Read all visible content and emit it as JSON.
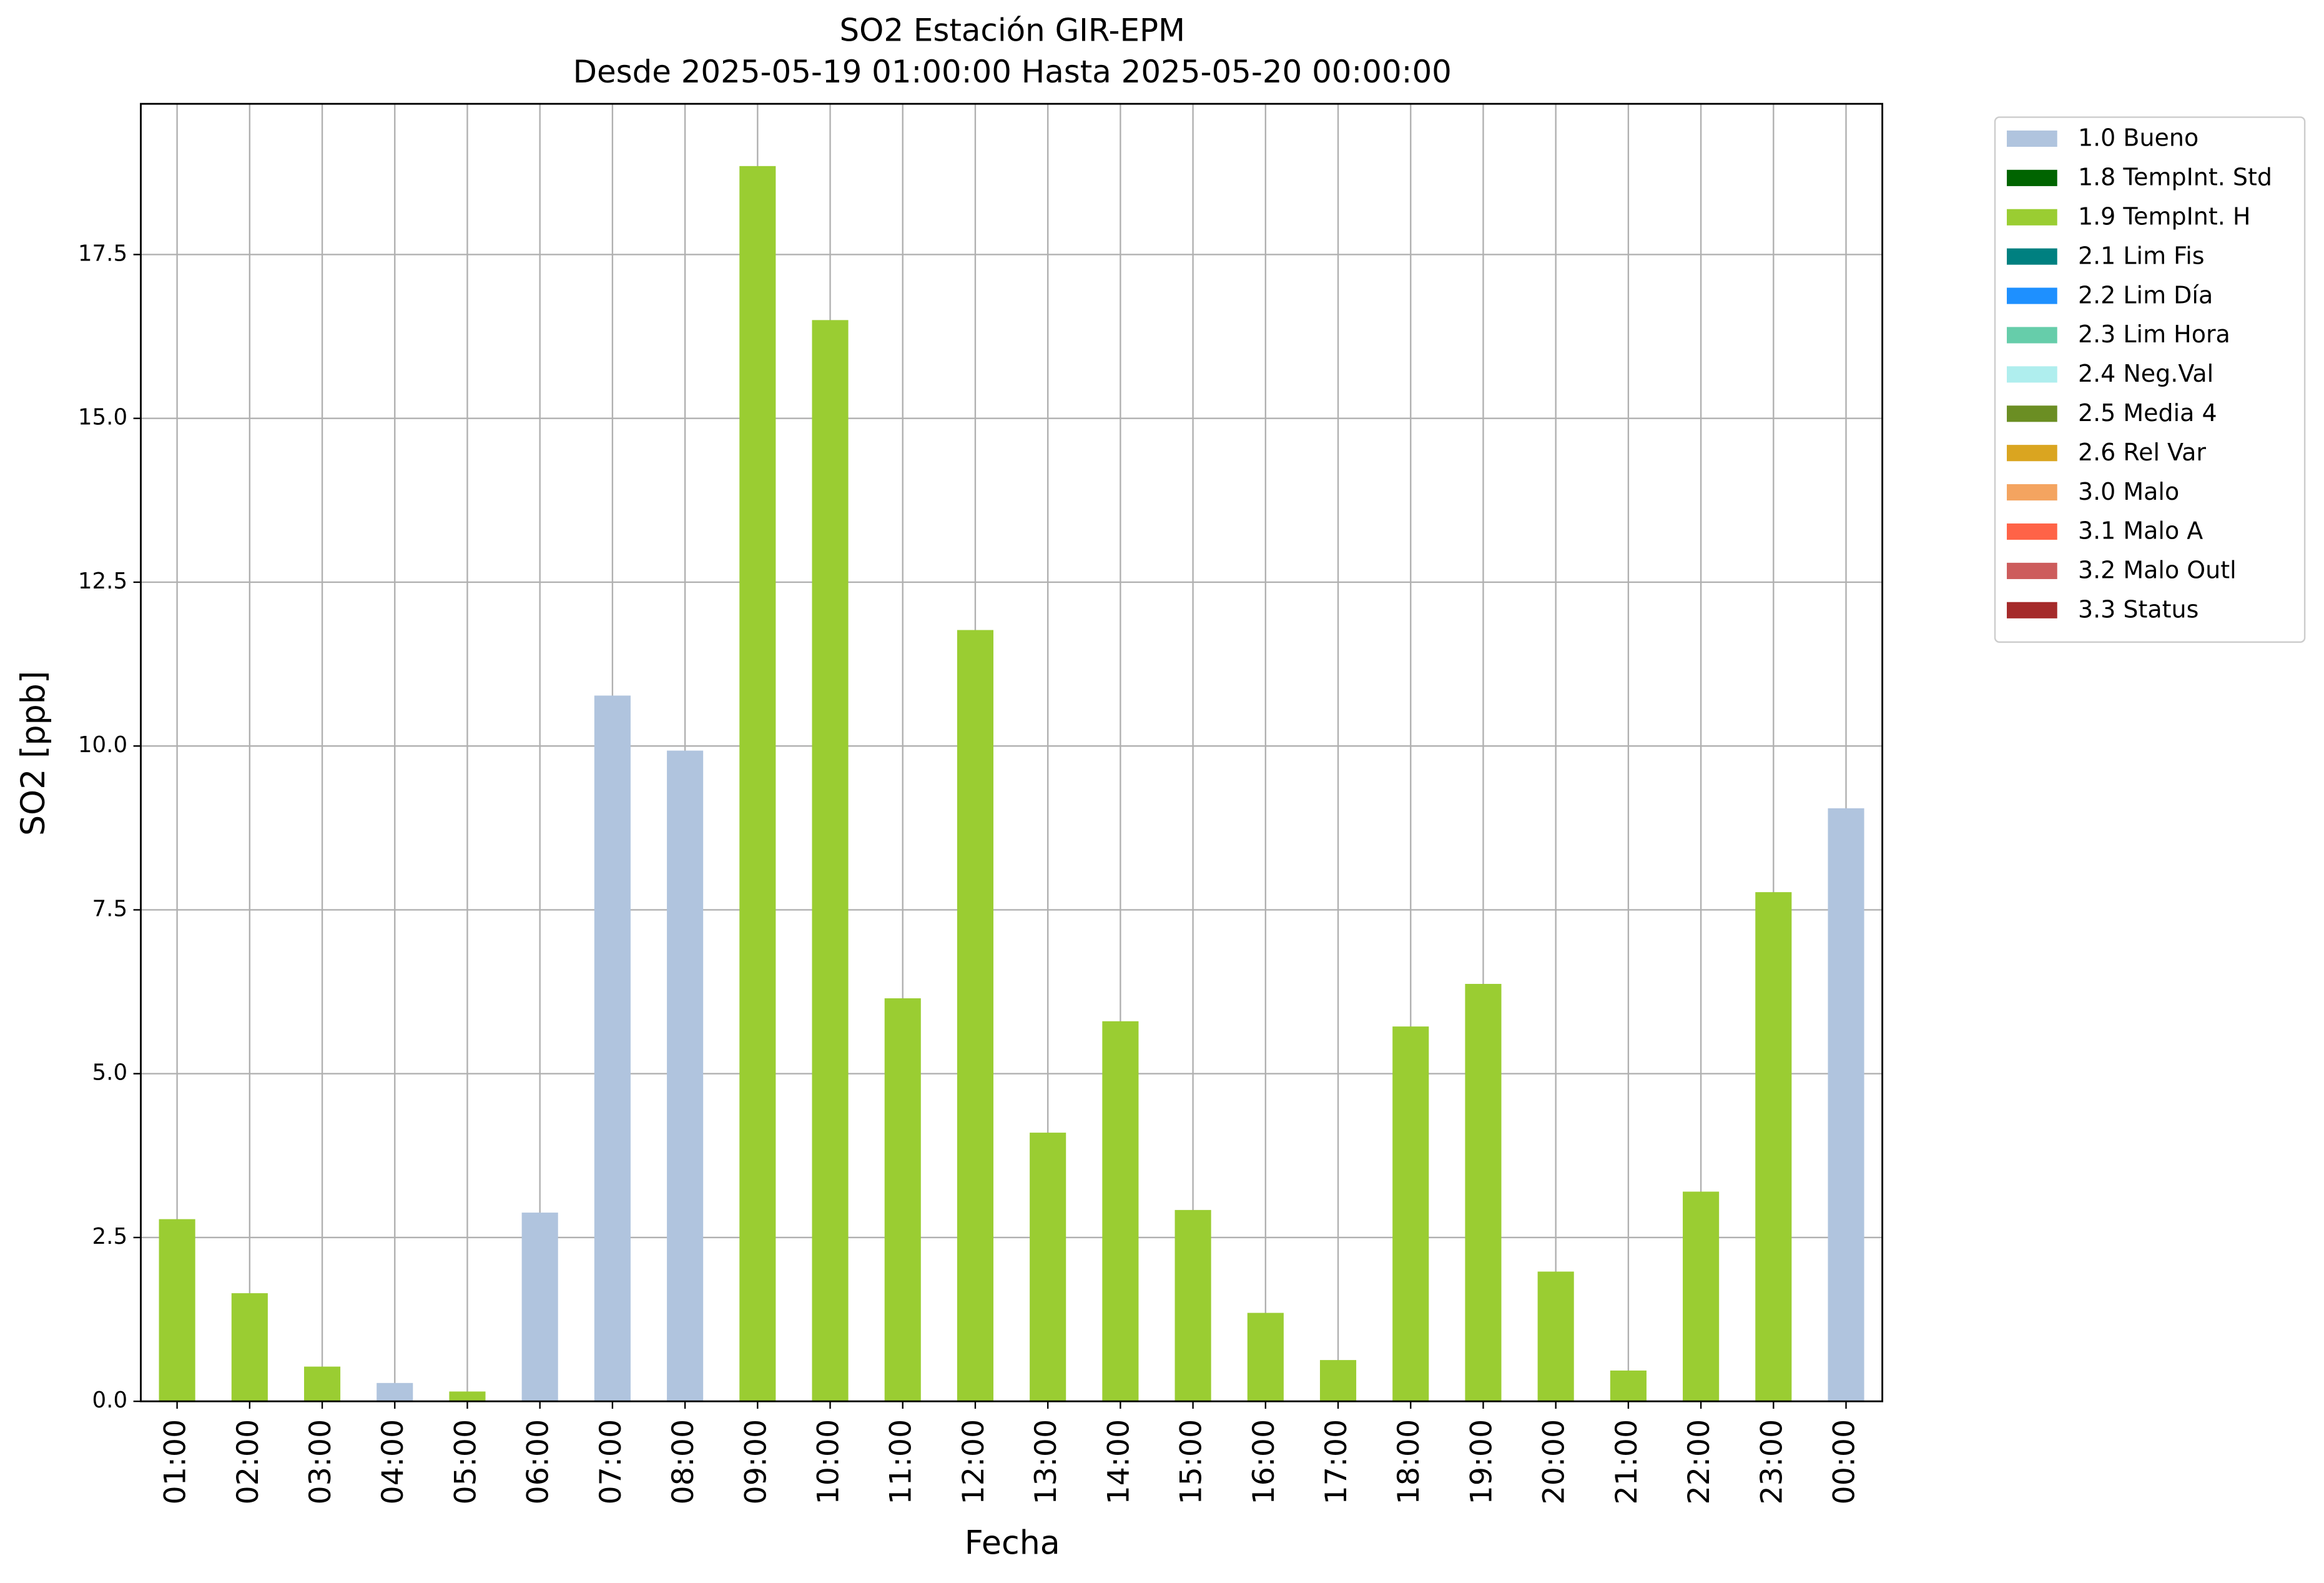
{
  "chart_data": {
    "type": "stacked_bar",
    "title": "SO2 Estación GIR-EPM",
    "subtitle": "Desde 2025-05-19 01:00:00 Hasta 2025-05-20 00:00:00",
    "xlabel": "Fecha",
    "ylabel": "SO2 [ppb]",
    "categories": [
      "01:00",
      "02:00",
      "03:00",
      "04:00",
      "05:00",
      "06:00",
      "07:00",
      "08:00",
      "09:00",
      "10:00",
      "11:00",
      "12:00",
      "13:00",
      "14:00",
      "15:00",
      "16:00",
      "17:00",
      "18:00",
      "19:00",
      "20:00",
      "21:00",
      "22:00",
      "23:00",
      "00:00"
    ],
    "series": [
      {
        "name": "1.0 Bueno",
        "color": "#b0c4de",
        "values": [
          null,
          null,
          null,
          0.28,
          null,
          2.88,
          10.77,
          9.93,
          null,
          null,
          null,
          null,
          null,
          null,
          null,
          null,
          null,
          null,
          null,
          null,
          null,
          null,
          null,
          9.05
        ]
      },
      {
        "name": "1.8 TempInt. Std",
        "color": "#006400",
        "values": [
          null,
          null,
          null,
          null,
          null,
          null,
          null,
          null,
          null,
          null,
          null,
          null,
          null,
          null,
          null,
          null,
          null,
          null,
          null,
          null,
          null,
          null,
          null,
          null
        ]
      },
      {
        "name": "1.9 TempInt. H",
        "color": "#9acd32",
        "values": [
          2.78,
          1.65,
          0.53,
          null,
          0.15,
          null,
          null,
          null,
          18.85,
          16.5,
          6.15,
          11.77,
          4.1,
          5.8,
          2.92,
          1.35,
          0.63,
          5.72,
          6.37,
          1.98,
          0.47,
          3.2,
          7.77,
          null
        ]
      },
      {
        "name": "2.1 Lim Fis",
        "color": "#008080",
        "values": [
          null,
          null,
          null,
          null,
          null,
          null,
          null,
          null,
          null,
          null,
          null,
          null,
          null,
          null,
          null,
          null,
          null,
          null,
          null,
          null,
          null,
          null,
          null,
          null
        ]
      },
      {
        "name": "2.2 Lim Día",
        "color": "#1e90ff",
        "values": [
          null,
          null,
          null,
          null,
          null,
          null,
          null,
          null,
          null,
          null,
          null,
          null,
          null,
          null,
          null,
          null,
          null,
          null,
          null,
          null,
          null,
          null,
          null,
          null
        ]
      },
      {
        "name": "2.3 Lim Hora",
        "color": "#66cdaa",
        "values": [
          null,
          null,
          null,
          null,
          null,
          null,
          null,
          null,
          null,
          null,
          null,
          null,
          null,
          null,
          null,
          null,
          null,
          null,
          null,
          null,
          null,
          null,
          null,
          null
        ]
      },
      {
        "name": "2.4 Neg.Val",
        "color": "#afeeee",
        "values": [
          null,
          null,
          null,
          null,
          null,
          null,
          null,
          null,
          null,
          null,
          null,
          null,
          null,
          null,
          null,
          null,
          null,
          null,
          null,
          null,
          null,
          null,
          null,
          null
        ]
      },
      {
        "name": "2.5 Media 4",
        "color": "#6b8e23",
        "values": [
          null,
          null,
          null,
          null,
          null,
          null,
          null,
          null,
          null,
          null,
          null,
          null,
          null,
          null,
          null,
          null,
          null,
          null,
          null,
          null,
          null,
          null,
          null,
          null
        ]
      },
      {
        "name": "2.6 Rel Var",
        "color": "#daa520",
        "values": [
          null,
          null,
          null,
          null,
          null,
          null,
          null,
          null,
          null,
          null,
          null,
          null,
          null,
          null,
          null,
          null,
          null,
          null,
          null,
          null,
          null,
          null,
          null,
          null
        ]
      },
      {
        "name": "3.0 Malo",
        "color": "#f4a460",
        "values": [
          null,
          null,
          null,
          null,
          null,
          null,
          null,
          null,
          null,
          null,
          null,
          null,
          null,
          null,
          null,
          null,
          null,
          null,
          null,
          null,
          null,
          null,
          null,
          null
        ]
      },
      {
        "name": "3.1 Malo A",
        "color": "#ff6347",
        "values": [
          null,
          null,
          null,
          null,
          null,
          null,
          null,
          null,
          null,
          null,
          null,
          null,
          null,
          null,
          null,
          null,
          null,
          null,
          null,
          null,
          null,
          null,
          null,
          null
        ]
      },
      {
        "name": "3.2 Malo Outl",
        "color": "#cd5c5c",
        "values": [
          null,
          null,
          null,
          null,
          null,
          null,
          null,
          null,
          null,
          null,
          null,
          null,
          null,
          null,
          null,
          null,
          null,
          null,
          null,
          null,
          null,
          null,
          null,
          null
        ]
      },
      {
        "name": "3.3 Status",
        "color": "#a52a2a",
        "values": [
          null,
          null,
          null,
          null,
          null,
          null,
          null,
          null,
          null,
          null,
          null,
          null,
          null,
          null,
          null,
          null,
          null,
          null,
          null,
          null,
          null,
          null,
          null,
          null
        ]
      }
    ],
    "ylim": [
      0,
      19.8
    ],
    "yticks": [
      {
        "value": 0,
        "label": "0.0"
      },
      {
        "value": 2.5,
        "label": "2.5"
      },
      {
        "value": 5,
        "label": "5.0"
      },
      {
        "value": 7.5,
        "label": "7.5"
      },
      {
        "value": 10,
        "label": "10.0"
      },
      {
        "value": 12.5,
        "label": "12.5"
      },
      {
        "value": 15,
        "label": "15.0"
      },
      {
        "value": 17.5,
        "label": "17.5"
      }
    ],
    "grid": true,
    "legend": "outside right"
  }
}
